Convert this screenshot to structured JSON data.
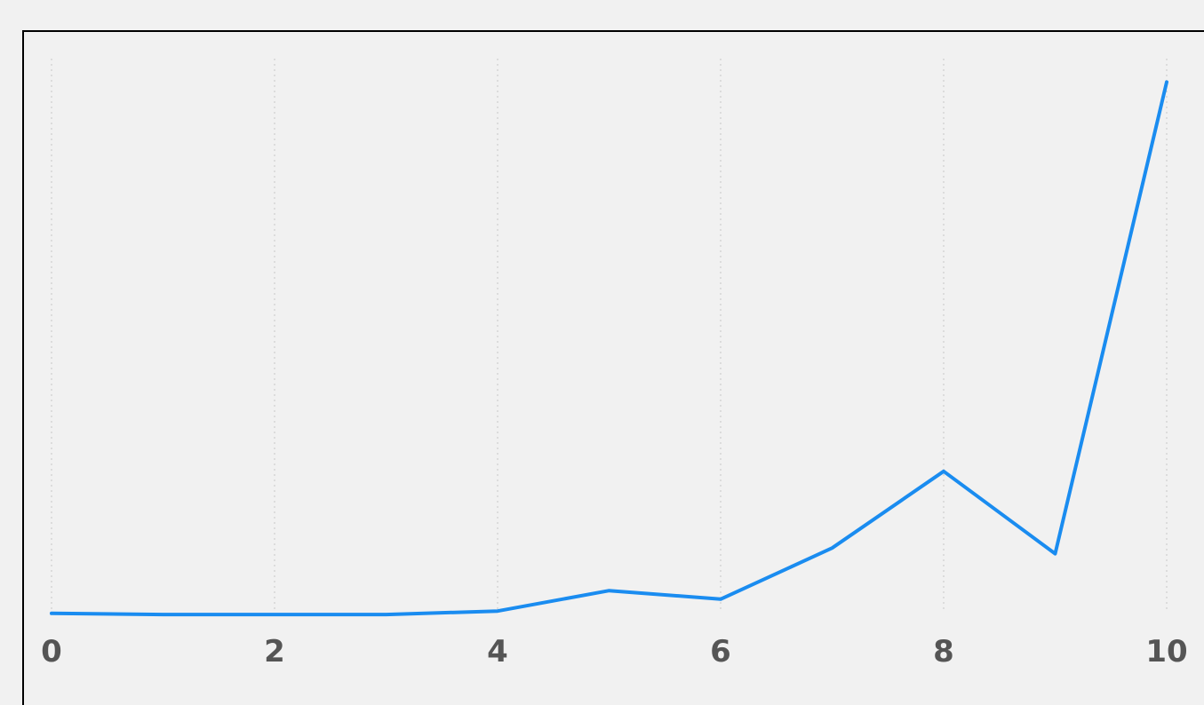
{
  "chart_data": {
    "type": "line",
    "title": "",
    "xlabel": "",
    "ylabel": "",
    "xlim": [
      0,
      10
    ],
    "ylim": [
      0,
      100
    ],
    "grid": {
      "x": true,
      "y": false
    },
    "x_ticks": [
      "0",
      "2",
      "4",
      "6",
      "8",
      "10"
    ],
    "series": [
      {
        "color": "#1a8cf0",
        "x": [
          0,
          1,
          2,
          3,
          4,
          5,
          6,
          7,
          8,
          9,
          10
        ],
        "y": [
          0.5,
          0.3,
          0.3,
          0.3,
          0.9,
          4.5,
          3.0,
          12.0,
          25.5,
          11.0,
          94.0
        ]
      }
    ]
  }
}
